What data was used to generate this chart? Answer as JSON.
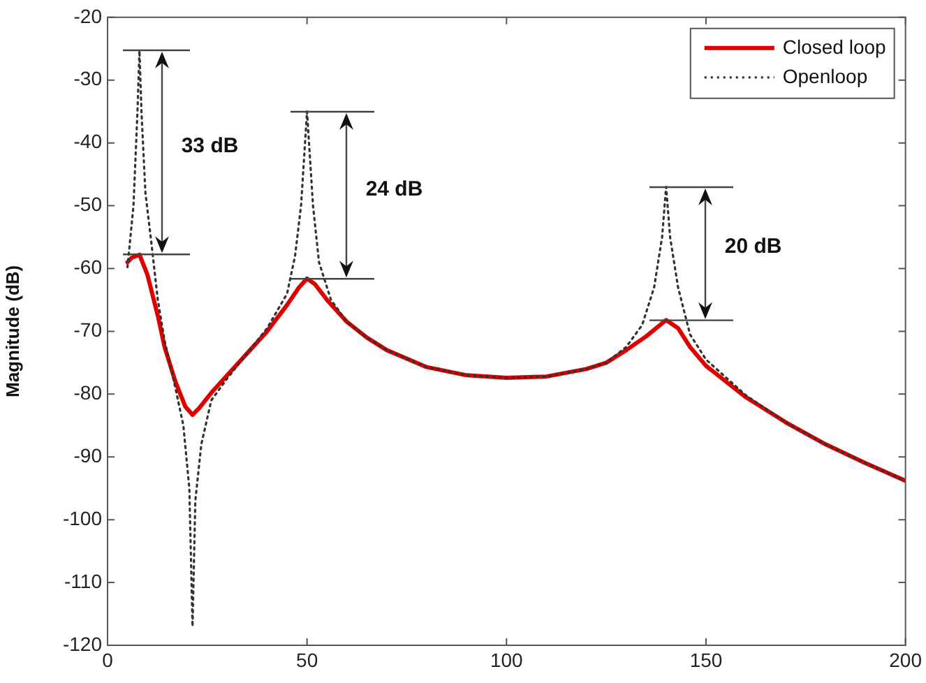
{
  "chart_data": {
    "type": "line",
    "ylabel": "Magnitude (dB)",
    "xlim": [
      0,
      200
    ],
    "xticks": [
      0,
      50,
      100,
      150,
      200
    ],
    "ylim": [
      -120,
      -20
    ],
    "yticks": [
      -120,
      -110,
      -100,
      -90,
      -80,
      -70,
      -60,
      -50,
      -40,
      -30,
      -20
    ],
    "grid": false,
    "legend": "top right",
    "marker": "none",
    "series": [
      {
        "name": "Closed loop",
        "color": "#e00000",
        "line_style": "solid",
        "x": [
          5,
          6,
          8,
          10,
          12.6,
          14.3,
          17,
          19.5,
          21.3,
          23,
          26,
          30,
          35,
          40,
          45,
          48,
          50,
          52,
          55,
          60,
          65,
          70,
          80,
          90,
          100,
          110,
          120,
          125,
          130,
          135,
          140,
          143,
          146,
          150,
          160,
          170,
          180,
          190,
          200
        ],
        "values": [
          -59,
          -58.3,
          -57.8,
          -61,
          -67.5,
          -72.5,
          -78,
          -82,
          -83.3,
          -82.2,
          -79.8,
          -77,
          -73.5,
          -70,
          -65.8,
          -63,
          -61.6,
          -62.5,
          -65,
          -68.5,
          -71,
          -73,
          -75.7,
          -77,
          -77.4,
          -77.2,
          -76,
          -75,
          -73,
          -70.8,
          -68.2,
          -69.5,
          -72.5,
          -75.5,
          -80.5,
          -84.5,
          -88,
          -91,
          -93.8
        ]
      },
      {
        "name": "Openloop",
        "color": "#333333",
        "line_style": "dotted",
        "x": [
          5,
          6.5,
          7.5,
          8,
          8.5,
          9.5,
          11,
          12.6,
          14.3,
          17,
          19,
          20.5,
          21.3,
          22,
          23.5,
          26,
          30,
          35,
          40,
          45,
          47,
          48.5,
          50,
          51.5,
          53,
          56,
          60,
          65,
          70,
          80,
          90,
          100,
          110,
          120,
          125,
          130,
          134,
          137,
          139,
          140,
          141,
          143,
          146,
          150,
          160,
          170,
          180,
          190,
          200
        ],
        "values": [
          -59.8,
          -50,
          -35,
          -25.3,
          -35,
          -48,
          -56,
          -65,
          -71.5,
          -79,
          -85,
          -95,
          -117,
          -97,
          -88,
          -81,
          -77.5,
          -73.5,
          -69.5,
          -64,
          -58,
          -50,
          -35,
          -50,
          -59,
          -65,
          -68.5,
          -71,
          -73,
          -75.7,
          -77,
          -77.4,
          -77.2,
          -76,
          -75,
          -72.5,
          -69,
          -63,
          -55,
          -47,
          -55,
          -63,
          -70.5,
          -74.5,
          -80.2,
          -84.5,
          -88,
          -91,
          -93.8
        ]
      }
    ],
    "annotations": [
      "33 dB",
      "24 dB",
      "20 dB"
    ]
  }
}
